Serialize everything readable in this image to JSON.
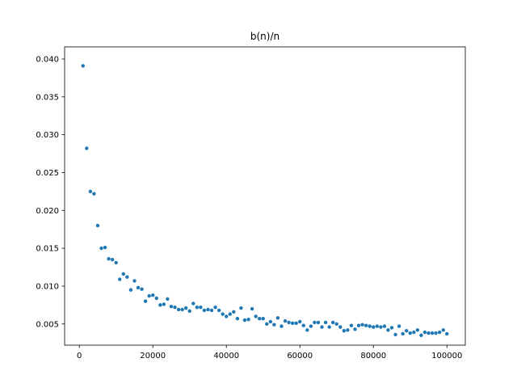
{
  "chart_data": {
    "type": "scatter",
    "title": "b(n)/n",
    "xlabel": "",
    "ylabel": "",
    "xlim": [
      -4000,
      105000
    ],
    "ylim": [
      0.0022,
      0.0416
    ],
    "xticks": [
      0,
      20000,
      40000,
      60000,
      80000,
      100000
    ],
    "xtick_labels": [
      "0",
      "20000",
      "40000",
      "60000",
      "80000",
      "100000"
    ],
    "yticks": [
      0.005,
      0.01,
      0.015,
      0.02,
      0.025,
      0.03,
      0.035,
      0.04
    ],
    "ytick_labels": [
      "0.005",
      "0.010",
      "0.015",
      "0.020",
      "0.025",
      "0.030",
      "0.035",
      "0.040"
    ],
    "grid": false,
    "marker_color": "#1f77b4",
    "series": [
      {
        "x": [
          1000,
          2000,
          3000,
          4000,
          5000,
          6000,
          7000,
          8000,
          9000,
          10000,
          11000,
          12000,
          13000,
          14000,
          15000,
          16000,
          17000,
          18000,
          19000,
          20000,
          21000,
          22000,
          23000,
          24000,
          25000,
          26000,
          27000,
          28000,
          29000,
          30000,
          31000,
          32000,
          33000,
          34000,
          35000,
          36000,
          37000,
          38000,
          39000,
          40000,
          41000,
          42000,
          43000,
          44000,
          45000,
          46000,
          47000,
          48000,
          49000,
          50000,
          51000,
          52000,
          53000,
          54000,
          55000,
          56000,
          57000,
          58000,
          59000,
          60000,
          61000,
          62000,
          63000,
          64000,
          65000,
          66000,
          67000,
          68000,
          69000,
          70000,
          71000,
          72000,
          73000,
          74000,
          75000,
          76000,
          77000,
          78000,
          79000,
          80000,
          81000,
          82000,
          83000,
          84000,
          85000,
          86000,
          87000,
          88000,
          89000,
          90000,
          91000,
          92000,
          93000,
          94000,
          95000,
          96000,
          97000,
          98000,
          99000,
          100000
        ],
        "y": [
          0.0391,
          0.0282,
          0.0225,
          0.0222,
          0.018,
          0.015,
          0.0151,
          0.0136,
          0.0135,
          0.0131,
          0.0109,
          0.0116,
          0.0112,
          0.0095,
          0.0107,
          0.0098,
          0.0096,
          0.008,
          0.0087,
          0.0088,
          0.0084,
          0.0075,
          0.0076,
          0.0083,
          0.0073,
          0.0072,
          0.0069,
          0.0069,
          0.0071,
          0.0067,
          0.0077,
          0.0072,
          0.0072,
          0.0068,
          0.0069,
          0.0068,
          0.0072,
          0.0068,
          0.0063,
          0.006,
          0.0063,
          0.0066,
          0.0057,
          0.0071,
          0.0055,
          0.0056,
          0.007,
          0.006,
          0.0057,
          0.0057,
          0.005,
          0.0053,
          0.0049,
          0.0058,
          0.0047,
          0.0054,
          0.0052,
          0.0051,
          0.0051,
          0.0053,
          0.0048,
          0.0042,
          0.0047,
          0.0052,
          0.0052,
          0.0046,
          0.0052,
          0.0046,
          0.0052,
          0.005,
          0.0046,
          0.0041,
          0.0042,
          0.0048,
          0.0043,
          0.0048,
          0.0049,
          0.0048,
          0.0047,
          0.0046,
          0.0047,
          0.0046,
          0.0047,
          0.0042,
          0.0045,
          0.0036,
          0.0047,
          0.0037,
          0.0041,
          0.0038,
          0.0039,
          0.0042,
          0.0035,
          0.0039,
          0.0038,
          0.0038,
          0.0038,
          0.0039,
          0.0042,
          0.0037
        ]
      }
    ]
  }
}
